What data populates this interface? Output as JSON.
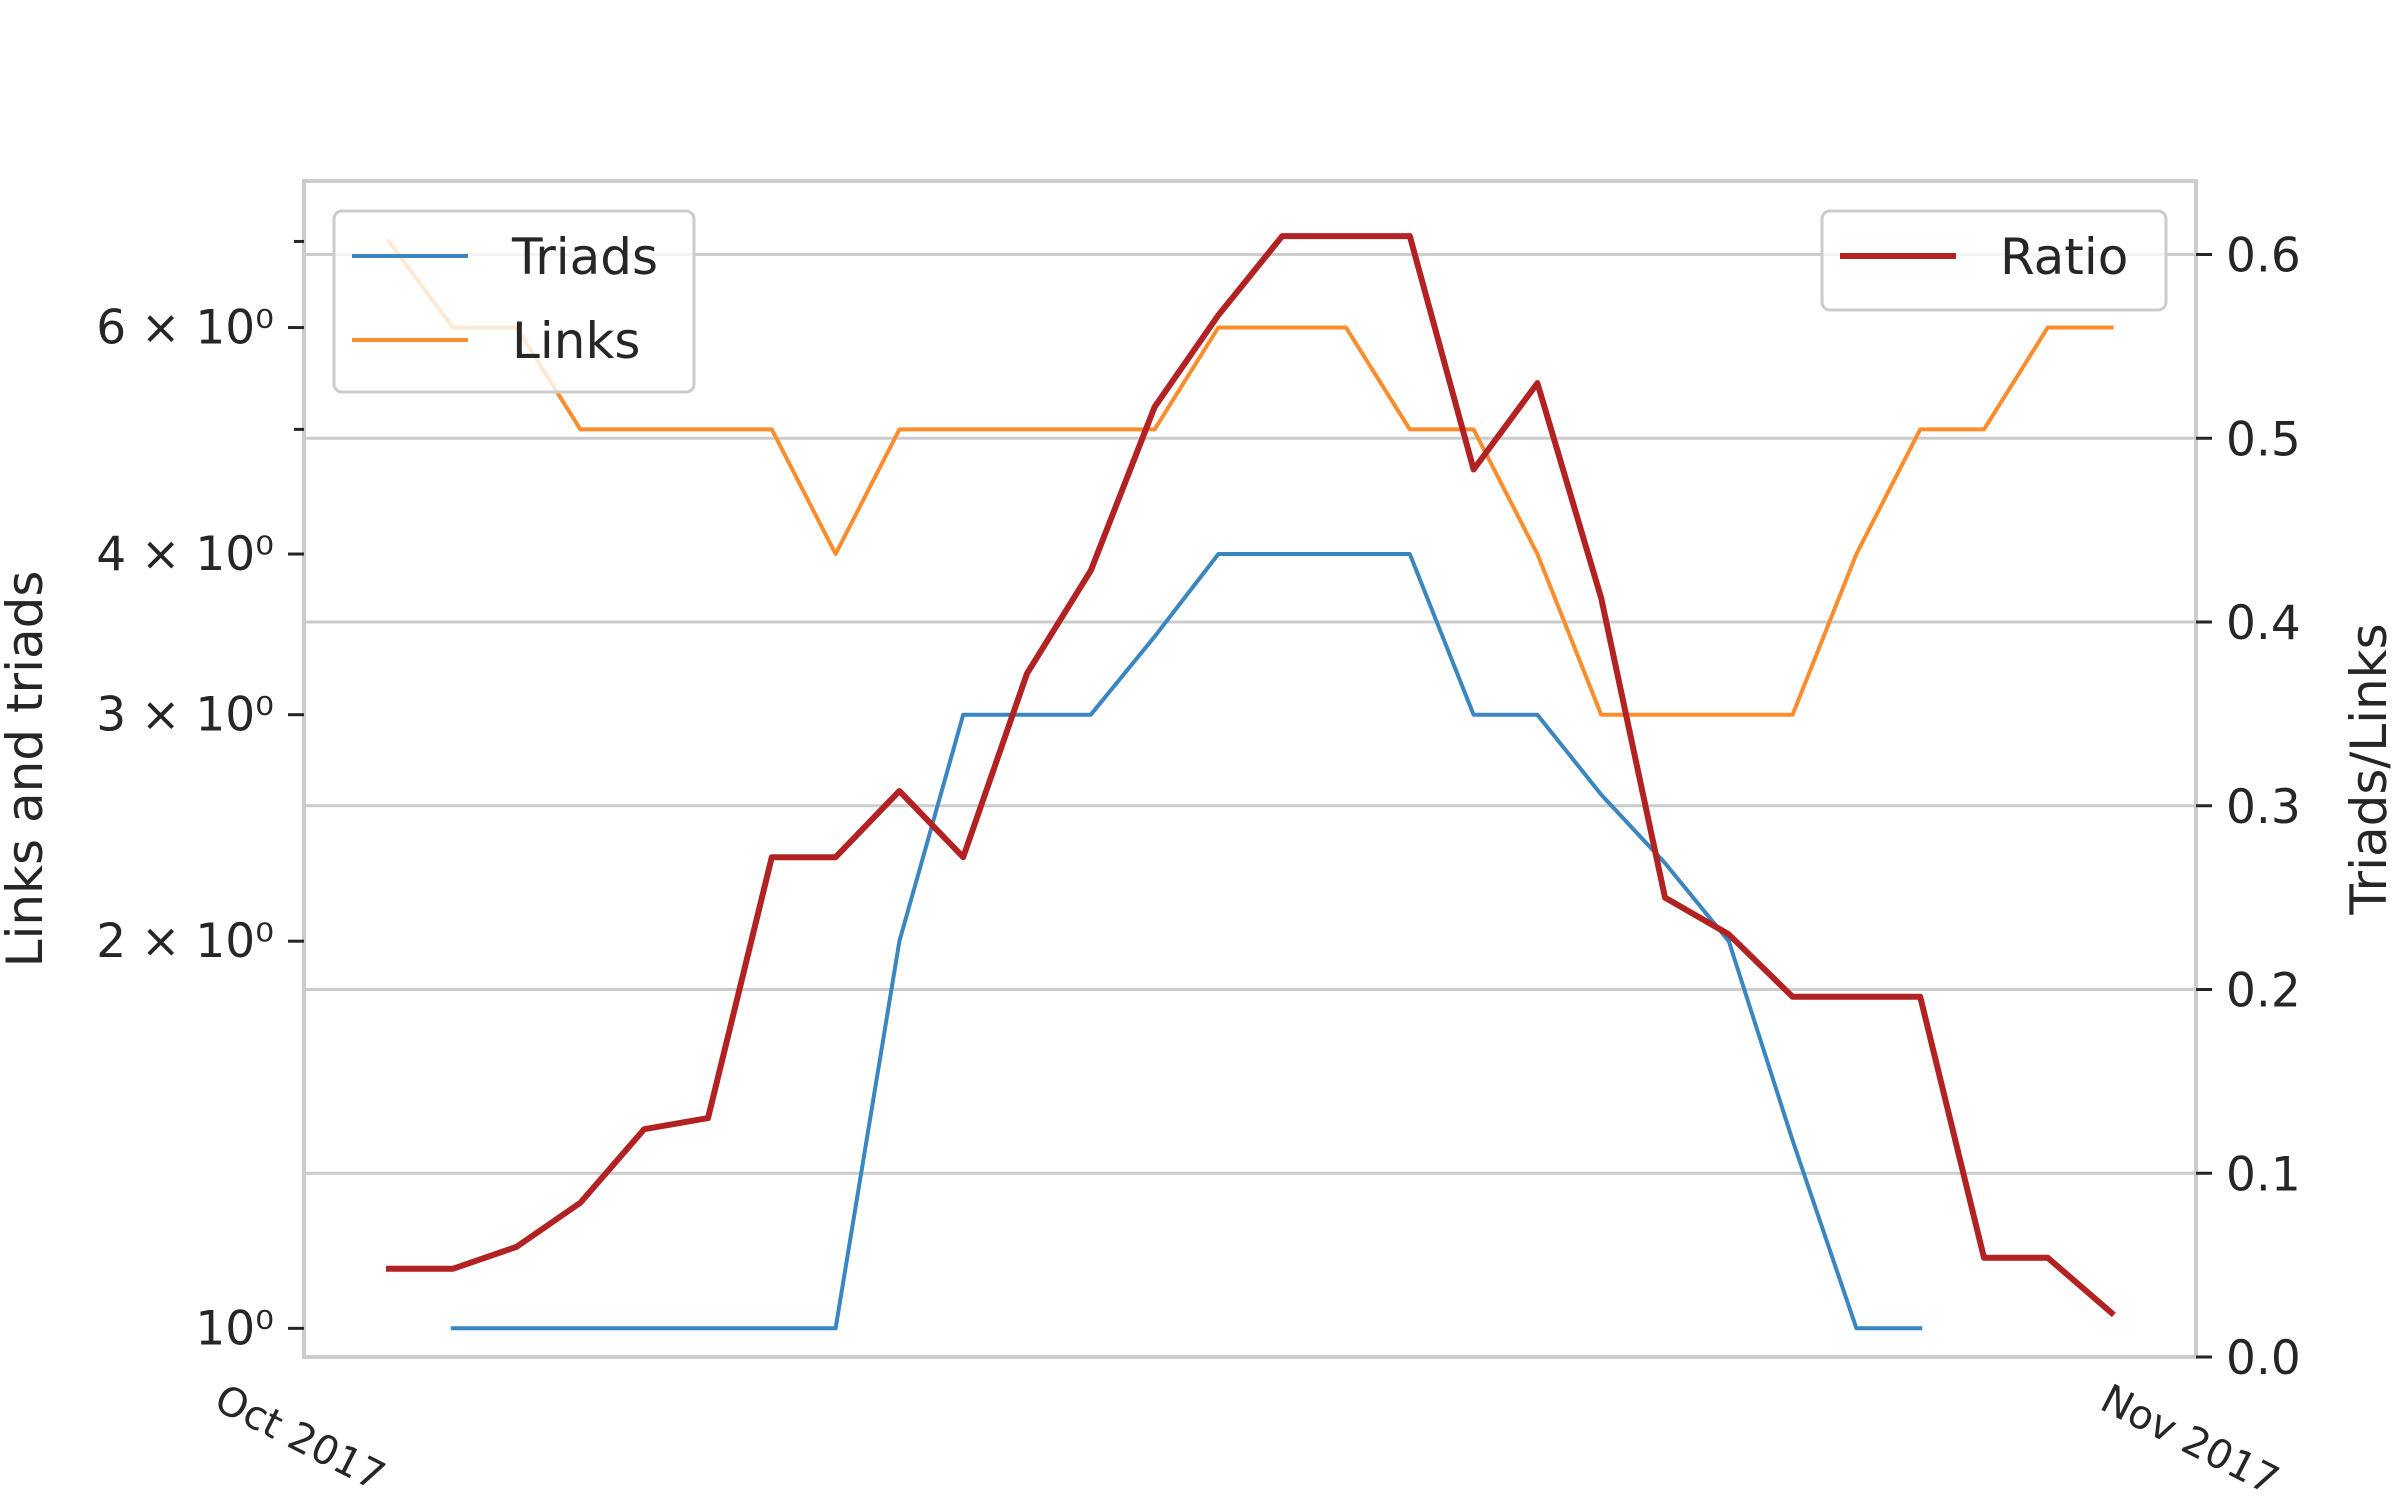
{
  "chart_data": {
    "type": "line",
    "x_start_label": "Oct 2017",
    "x_end_label": "Nov 2017",
    "left_axis": {
      "label": "Links and triads",
      "scale": "log",
      "ticks": [
        {
          "value": 1,
          "label": "10⁰"
        },
        {
          "value": 2,
          "label": "2 × 10⁰"
        },
        {
          "value": 3,
          "label": "3 × 10⁰"
        },
        {
          "value": 4,
          "label": "4 × 10⁰"
        },
        {
          "value": 6,
          "label": "6 × 10⁰"
        }
      ],
      "minor_ticks": [
        5,
        7
      ],
      "range": [
        0.95,
        7.8
      ]
    },
    "right_axis": {
      "label": "Triads/Links",
      "scale": "linear",
      "ticks": [
        0.0,
        0.1,
        0.2,
        0.3,
        0.4,
        0.5,
        0.6
      ],
      "range": [
        0.0,
        0.64
      ]
    },
    "left_series": [
      {
        "name": "Triads",
        "color": "#3a86c0",
        "values": [
          null,
          1,
          1,
          1,
          1,
          1,
          1,
          1,
          2,
          3,
          3,
          3,
          3.45,
          4,
          4,
          4,
          4,
          3,
          3,
          2.6,
          2.3,
          2,
          1.4,
          1,
          1,
          null,
          null,
          null
        ]
      },
      {
        "name": "Links",
        "color": "#fd8d2c",
        "values": [
          7,
          6,
          6,
          5,
          5,
          5,
          5,
          4,
          5,
          5,
          5,
          5,
          5,
          6,
          6,
          6,
          5,
          5,
          4,
          3,
          3,
          3,
          3,
          4,
          5,
          5,
          6,
          6
        ]
      }
    ],
    "right_series": [
      {
        "name": "Ratio",
        "color": "#b22222",
        "values": [
          0.048,
          0.048,
          0.06,
          0.084,
          0.124,
          0.13,
          0.272,
          0.272,
          0.308,
          0.272,
          0.372,
          0.428,
          0.517,
          0.567,
          0.61,
          0.61,
          0.61,
          0.483,
          0.53,
          0.413,
          0.25,
          0.23,
          0.196,
          0.196,
          0.196,
          0.054,
          0.054,
          0.024
        ]
      }
    ],
    "legends": {
      "left_position": "upper-left",
      "right_position": "upper-right"
    },
    "grid": true
  }
}
